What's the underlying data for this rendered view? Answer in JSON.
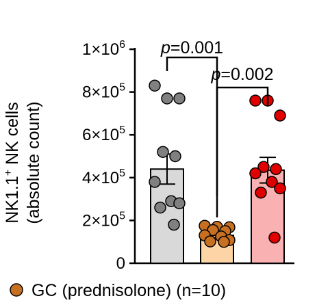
{
  "chart_data": {
    "type": "bar",
    "ylabel_line1": "NK1.1",
    "ylabel_sup": "+",
    "ylabel_line1_rest": " NK cells",
    "ylabel_line2": "(absolute count)",
    "ylim": [
      0,
      1000000
    ],
    "yticks": [
      {
        "value": 0,
        "base": "0",
        "exp": ""
      },
      {
        "value": 200000,
        "base": "2×10",
        "exp": "5"
      },
      {
        "value": 400000,
        "base": "4×10",
        "exp": "5"
      },
      {
        "value": 600000,
        "base": "6×10",
        "exp": "5"
      },
      {
        "value": 800000,
        "base": "8×10",
        "exp": "5"
      },
      {
        "value": 1000000,
        "base": "1×10",
        "exp": "6"
      }
    ],
    "series": [
      {
        "mean": 440000,
        "sem": 70000,
        "fill": "#d9d9d9",
        "point_color": "#808080",
        "points": [
          830000,
          770000,
          770000,
          520000,
          500000,
          380000,
          290000,
          280000,
          260000,
          180000
        ]
      },
      {
        "mean": 130000,
        "sem": 12000,
        "fill": "#fcd4a6",
        "point_color": "#c87021",
        "points": [
          175000,
          170000,
          168000,
          155000,
          150000,
          130000,
          125000,
          108000,
          102000,
          100000
        ]
      },
      {
        "mean": 435000,
        "sem": 60000,
        "fill": "#f9b1b1",
        "point_color": "#e10000",
        "points": [
          760000,
          760000,
          690000,
          450000,
          440000,
          420000,
          380000,
          350000,
          330000,
          120000
        ]
      }
    ],
    "significance": [
      {
        "label_p": "p",
        "label_rest": "=0.001",
        "from": 0,
        "to": 1
      },
      {
        "label_p": "p",
        "label_rest": "=0.002",
        "from": 1,
        "to": 2
      }
    ]
  },
  "legend": {
    "label": "GC (prednisolone) (n=10)",
    "marker_color": "#c87021"
  }
}
